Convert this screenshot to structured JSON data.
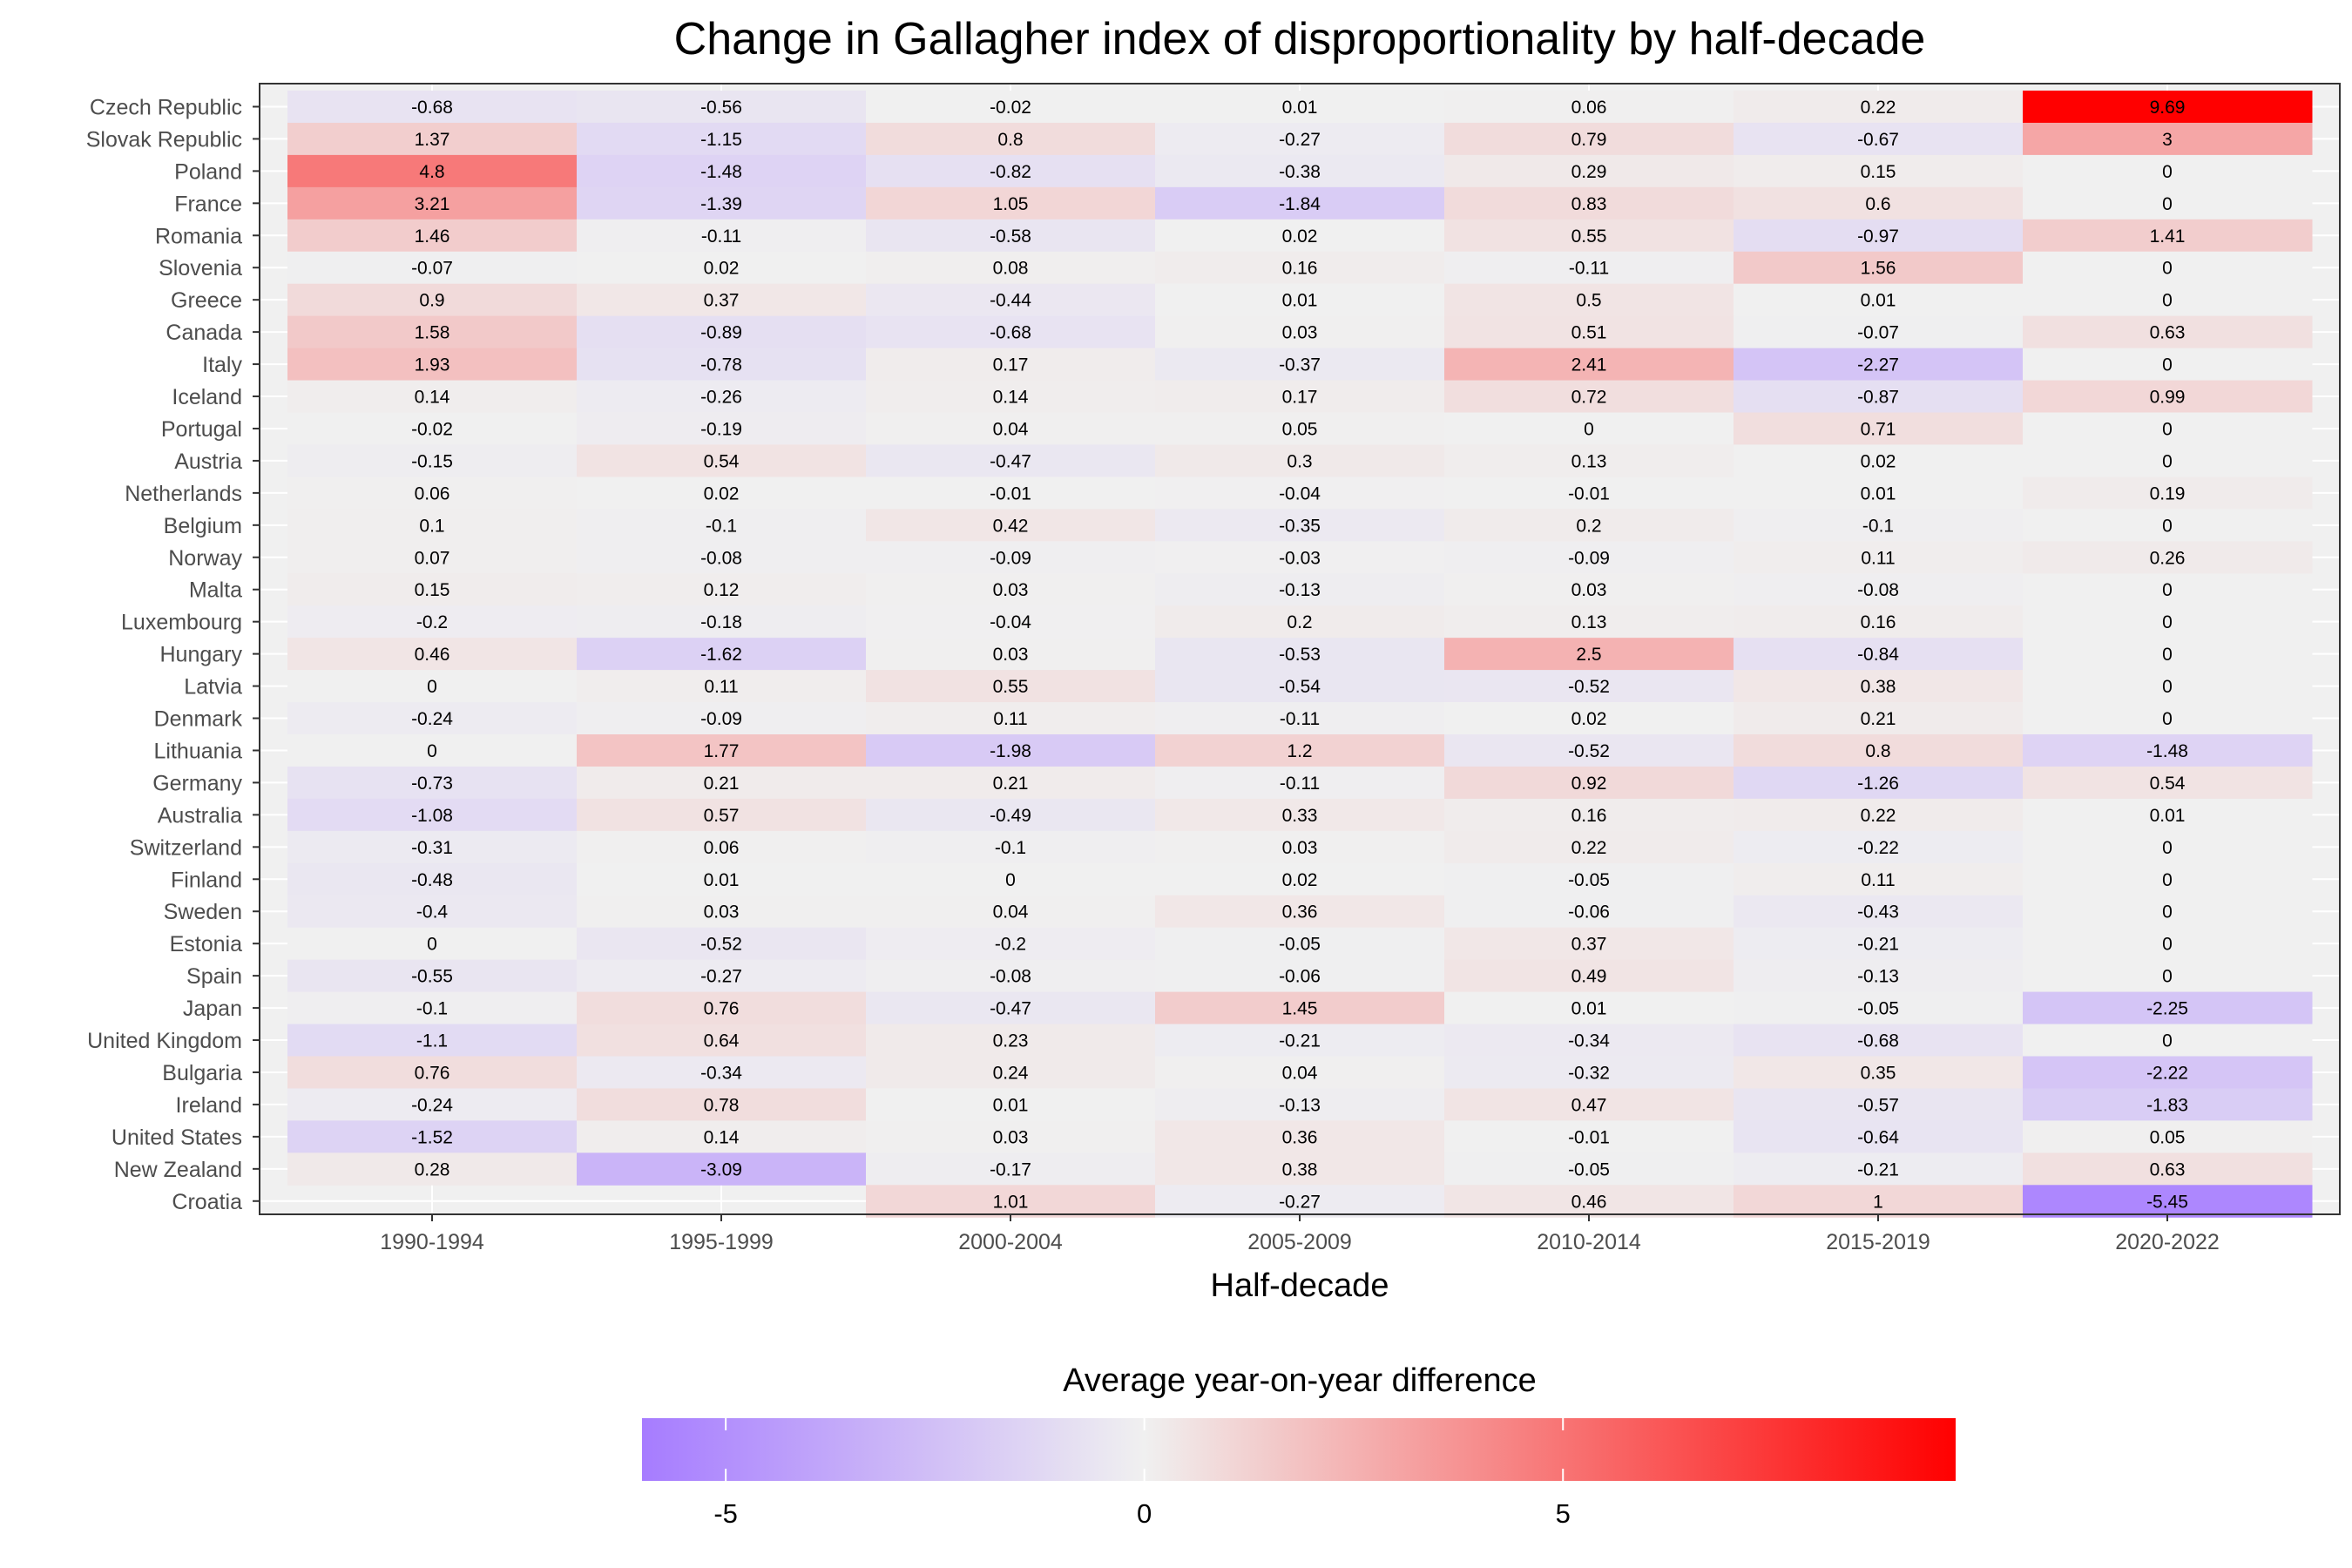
{
  "chart_data": {
    "type": "heatmap",
    "title": "Change in Gallagher index of disproportionality by half-decade",
    "xlabel": "Half-decade",
    "ylabel": "",
    "x_categories": [
      "1990-1994",
      "1995-1999",
      "2000-2004",
      "2005-2009",
      "2010-2014",
      "2015-2019",
      "2020-2022"
    ],
    "y_categories": [
      "Czech Republic",
      "Slovak Republic",
      "Poland",
      "France",
      "Romania",
      "Slovenia",
      "Greece",
      "Canada",
      "Italy",
      "Iceland",
      "Portugal",
      "Austria",
      "Netherlands",
      "Belgium",
      "Norway",
      "Malta",
      "Luxembourg",
      "Hungary",
      "Latvia",
      "Denmark",
      "Lithuania",
      "Germany",
      "Australia",
      "Switzerland",
      "Finland",
      "Sweden",
      "Estonia",
      "Spain",
      "Japan",
      "United Kingdom",
      "Bulgaria",
      "Ireland",
      "United States",
      "New Zealand",
      "Croatia"
    ],
    "values": [
      [
        -0.68,
        -0.56,
        -0.02,
        0.01,
        0.06,
        0.22,
        9.69
      ],
      [
        1.37,
        -1.15,
        0.8,
        -0.27,
        0.79,
        -0.67,
        3
      ],
      [
        4.8,
        -1.48,
        -0.82,
        -0.38,
        0.29,
        0.15,
        0
      ],
      [
        3.21,
        -1.39,
        1.05,
        -1.84,
        0.83,
        0.6,
        0
      ],
      [
        1.46,
        -0.11,
        -0.58,
        0.02,
        0.55,
        -0.97,
        1.41
      ],
      [
        -0.07,
        0.02,
        0.08,
        0.16,
        -0.11,
        1.56,
        0
      ],
      [
        0.9,
        0.37,
        -0.44,
        0.01,
        0.5,
        0.01,
        0
      ],
      [
        1.58,
        -0.89,
        -0.68,
        0.03,
        0.51,
        -0.07,
        0.63
      ],
      [
        1.93,
        -0.78,
        0.17,
        -0.37,
        2.41,
        -2.27,
        0
      ],
      [
        0.14,
        -0.26,
        0.14,
        0.17,
        0.72,
        -0.87,
        0.99
      ],
      [
        -0.02,
        -0.19,
        0.04,
        0.05,
        0,
        0.71,
        0
      ],
      [
        -0.15,
        0.54,
        -0.47,
        0.3,
        0.13,
        0.02,
        0
      ],
      [
        0.06,
        0.02,
        -0.01,
        -0.04,
        -0.01,
        0.01,
        0.19
      ],
      [
        0.1,
        -0.1,
        0.42,
        -0.35,
        0.2,
        -0.1,
        0
      ],
      [
        0.07,
        -0.08,
        -0.09,
        -0.03,
        -0.09,
        0.11,
        0.26
      ],
      [
        0.15,
        0.12,
        0.03,
        -0.13,
        0.03,
        -0.08,
        0
      ],
      [
        -0.2,
        -0.18,
        -0.04,
        0.2,
        0.13,
        0.16,
        0
      ],
      [
        0.46,
        -1.62,
        0.03,
        -0.53,
        2.5,
        -0.84,
        0
      ],
      [
        0,
        0.11,
        0.55,
        -0.54,
        -0.52,
        0.38,
        0
      ],
      [
        -0.24,
        -0.09,
        0.11,
        -0.11,
        0.02,
        0.21,
        0
      ],
      [
        0,
        1.77,
        -1.98,
        1.2,
        -0.52,
        0.8,
        -1.48
      ],
      [
        -0.73,
        0.21,
        0.21,
        -0.11,
        0.92,
        -1.26,
        0.54
      ],
      [
        -1.08,
        0.57,
        -0.49,
        0.33,
        0.16,
        0.22,
        0.01
      ],
      [
        -0.31,
        0.06,
        -0.1,
        0.03,
        0.22,
        -0.22,
        0
      ],
      [
        -0.48,
        0.01,
        0,
        0.02,
        -0.05,
        0.11,
        0
      ],
      [
        -0.4,
        0.03,
        0.04,
        0.36,
        -0.06,
        -0.43,
        0
      ],
      [
        0,
        -0.52,
        -0.2,
        -0.05,
        0.37,
        -0.21,
        0
      ],
      [
        -0.55,
        -0.27,
        -0.08,
        -0.06,
        0.49,
        -0.13,
        0
      ],
      [
        -0.1,
        0.76,
        -0.47,
        1.45,
        0.01,
        -0.05,
        -2.25
      ],
      [
        -1.1,
        0.64,
        0.23,
        -0.21,
        -0.34,
        -0.68,
        0
      ],
      [
        0.76,
        -0.34,
        0.24,
        0.04,
        -0.32,
        0.35,
        -2.22
      ],
      [
        -0.24,
        0.78,
        0.01,
        -0.13,
        0.47,
        -0.57,
        -1.83
      ],
      [
        -1.52,
        0.14,
        0.03,
        0.36,
        -0.01,
        -0.64,
        0.05
      ],
      [
        0.28,
        -3.09,
        -0.17,
        0.38,
        -0.05,
        -0.21,
        0.63
      ],
      [
        null,
        null,
        1.01,
        -0.27,
        0.46,
        1,
        -5.45
      ]
    ],
    "legend": {
      "title": "Average year-on-year difference",
      "placement": "bottom",
      "ticks": [
        "-5",
        "0",
        "5"
      ],
      "tick_values": [
        -5,
        0,
        5
      ],
      "range": [
        -6,
        9.69
      ]
    },
    "colors": {
      "low": "#a67cff",
      "mid": "#f0f0f0",
      "high": "#ff0000",
      "panel_background": "#f0f0f0",
      "grid": "#ffffff",
      "border": "#333333"
    },
    "grid": true
  }
}
